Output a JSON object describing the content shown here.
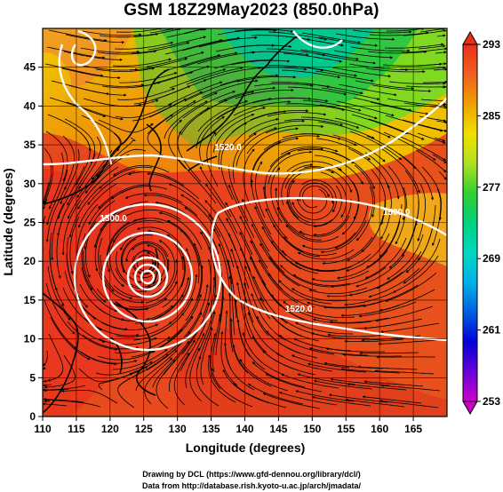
{
  "title": "GSM 18Z29May2023 (850.0hPa)",
  "x_axis": {
    "label": "Longitude (degrees)",
    "range": [
      110,
      170
    ],
    "ticks": [
      "110",
      "115",
      "120",
      "125",
      "130",
      "135",
      "140",
      "145",
      "150",
      "155",
      "160",
      "165"
    ]
  },
  "y_axis": {
    "label": "Latitude  (degrees)",
    "range": [
      0,
      50
    ],
    "ticks": [
      "0",
      "5",
      "10",
      "15",
      "20",
      "25",
      "30",
      "35",
      "40",
      "45"
    ]
  },
  "colorbar": {
    "labels": [
      "293",
      "285",
      "277",
      "269",
      "261",
      "253"
    ],
    "range": [
      253,
      293
    ],
    "colors": [
      "#cc00cc",
      "#6a00d8",
      "#0000d8",
      "#0060e0",
      "#00b0e8",
      "#00d8c0",
      "#00d080",
      "#30d030",
      "#b0e020",
      "#f0e000",
      "#f0a000",
      "#f06020",
      "#e83018"
    ]
  },
  "contour_labels": [
    {
      "text": "1520.0",
      "lon": 137.5,
      "lat": 34.3
    },
    {
      "text": "1500.0",
      "lon": 162.5,
      "lat": 26.0
    },
    {
      "text": "1500.0",
      "lon": 120.5,
      "lat": 25.2
    },
    {
      "text": "1520.0",
      "lon": 148.0,
      "lat": 13.5
    }
  ],
  "typhoon_center": {
    "lon": 125.2,
    "lat": 19.8
  },
  "credits": [
    "Drawing by DCL (https://www.gfd-dennou.org/library/dcl/)",
    "Data from http://database.rish.kyoto-u.ac.jp/arch/jmadata/"
  ]
}
